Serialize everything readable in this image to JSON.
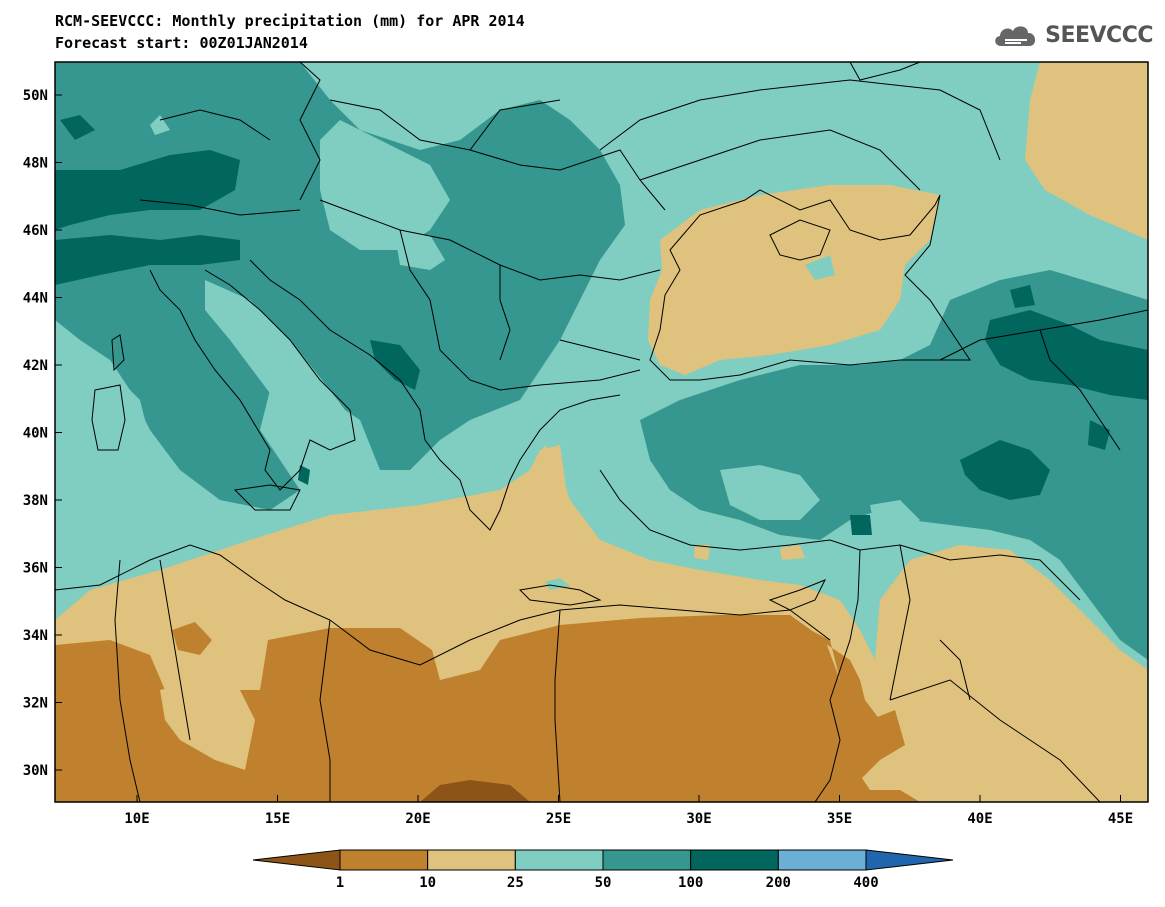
{
  "title_line1": "RCM-SEEVCCC: Monthly precipitation (mm) for APR 2014",
  "title_line2": "Forecast start: 00Z01JAN2014",
  "logo_text": "SEEVCCC",
  "logo_icon": "cloud-icon",
  "axes": {
    "lon_ticks": [
      "10E",
      "15E",
      "20E",
      "25E",
      "30E",
      "35E",
      "40E",
      "45E"
    ],
    "lat_ticks": [
      "50N",
      "48N",
      "46N",
      "44N",
      "42N",
      "40N",
      "38N",
      "36N",
      "34N",
      "32N",
      "30N"
    ]
  },
  "colorbar": {
    "colors": [
      "#8c5416",
      "#bf812d",
      "#dfc27d",
      "#80cdc1",
      "#35978f",
      "#01665e",
      "#6baed6",
      "#2166ac"
    ],
    "labels": [
      "1",
      "10",
      "25",
      "50",
      "100",
      "200",
      "400"
    ]
  },
  "palette": {
    "dry_dark": "#8c5416",
    "dry": "#bf812d",
    "dry_light": "#dfc27d",
    "wet_light": "#80cdc1",
    "wet": "#35978f",
    "wet_dark": "#01665e"
  }
}
